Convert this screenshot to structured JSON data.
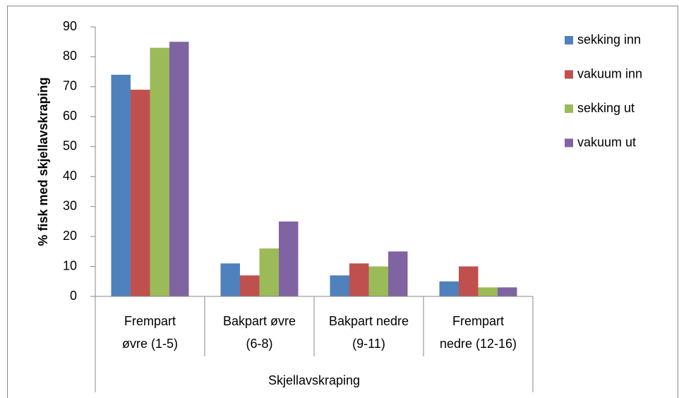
{
  "chart_data": {
    "type": "bar",
    "categories": [
      [
        "Frempart",
        "øvre (1-5)"
      ],
      [
        "Bakpart øvre",
        "(6-8)"
      ],
      [
        "Bakpart nedre",
        "(9-11)"
      ],
      [
        "Frempart",
        "nedre (12-16)"
      ]
    ],
    "series": [
      {
        "name": "sekking inn",
        "color": "#4f81bd",
        "values": [
          74,
          11,
          7,
          5
        ]
      },
      {
        "name": "vakuum inn",
        "color": "#c0504d",
        "values": [
          69,
          7,
          11,
          10
        ]
      },
      {
        "name": "sekking ut",
        "color": "#9bbb59",
        "values": [
          83,
          16,
          10,
          3
        ]
      },
      {
        "name": "vakuum ut",
        "color": "#8064a2",
        "values": [
          85,
          25,
          15,
          3
        ]
      }
    ],
    "x_label": "Skjellavskraping",
    "y_label": "% fisk med skjellavskraping",
    "ylim": [
      0,
      90
    ],
    "yticks": [
      0,
      10,
      20,
      30,
      40,
      50,
      60,
      70,
      80,
      90
    ],
    "legend": "right"
  }
}
